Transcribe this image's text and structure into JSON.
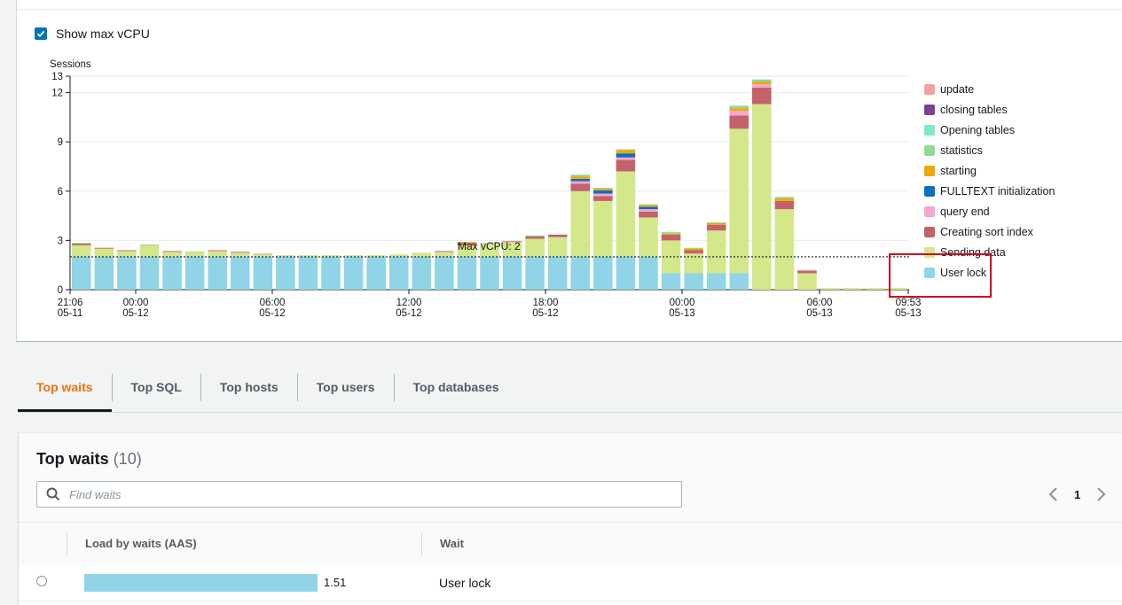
{
  "chart_controls": {
    "show_max_vcpu_label": "Show max vCPU",
    "show_max_vcpu_checked": true
  },
  "chart_data": {
    "type": "bar",
    "stacked": true,
    "ylabel": "Sessions",
    "ylim": [
      0,
      13
    ],
    "yticks": [
      0,
      3,
      6,
      9,
      12,
      13
    ],
    "xticks": [
      {
        "time": "21:06",
        "date": "05-11"
      },
      {
        "time": "00:00",
        "date": "05-12"
      },
      {
        "time": "06:00",
        "date": "05-12"
      },
      {
        "time": "12:00",
        "date": "05-12"
      },
      {
        "time": "18:00",
        "date": "05-12"
      },
      {
        "time": "00:00",
        "date": "05-13"
      },
      {
        "time": "06:00",
        "date": "05-13"
      },
      {
        "time": "09:53",
        "date": "05-13"
      }
    ],
    "max_vcpu_line": {
      "value": 2,
      "label": "Max vCPU: 2"
    },
    "series_colors": {
      "update": "#f4a0a0",
      "closing tables": "#7d3f98",
      "Opening tables": "#7ee8c8",
      "statistics": "#8fdc8f",
      "starting": "#f0a800",
      "FULLTEXT initialization": "#0c6fbf",
      "query end": "#f7a6d0",
      "Creating sort index": "#c2626b",
      "Sending data": "#d4e78a",
      "User lock": "#8fd5e7"
    },
    "bars": [
      {
        "User lock": 2,
        "Sending data": 0.7,
        "Creating sort index": 0.1,
        "statistics": 0.05
      },
      {
        "User lock": 2,
        "Sending data": 0.5,
        "Creating sort index": 0.05
      },
      {
        "User lock": 2,
        "Sending data": 0.35,
        "Creating sort index": 0.05
      },
      {
        "User lock": 2,
        "Sending data": 0.7,
        "statistics": 0.05
      },
      {
        "User lock": 2,
        "Sending data": 0.3,
        "Creating sort index": 0.05
      },
      {
        "User lock": 2,
        "Sending data": 0.3,
        "statistics": 0.03
      },
      {
        "User lock": 2,
        "Sending data": 0.35,
        "Creating sort index": 0.05
      },
      {
        "User lock": 2,
        "Sending data": 0.25,
        "Creating sort index": 0.05
      },
      {
        "User lock": 2,
        "Sending data": 0.15,
        "Creating sort index": 0.03
      },
      {
        "User lock": 2,
        "Sending data": 0.1
      },
      {
        "User lock": 2,
        "Sending data": 0.1
      },
      {
        "User lock": 2,
        "Sending data": 0.1
      },
      {
        "User lock": 2,
        "Sending data": 0.1
      },
      {
        "User lock": 2,
        "Sending data": 0.1
      },
      {
        "User lock": 2,
        "Sending data": 0.15
      },
      {
        "User lock": 2,
        "Sending data": 0.25
      },
      {
        "User lock": 2,
        "Sending data": 0.3,
        "Creating sort index": 0.05
      },
      {
        "User lock": 2,
        "Sending data": 0.7,
        "Creating sort index": 0.15,
        "starting": 0.05
      },
      {
        "User lock": 2,
        "Sending data": 0.8,
        "statistics": 0.05
      },
      {
        "User lock": 2,
        "Sending data": 0.9,
        "Creating sort index": 0.05
      },
      {
        "User lock": 2,
        "Sending data": 1.1,
        "Creating sort index": 0.15,
        "statistics": 0.05
      },
      {
        "User lock": 2,
        "Sending data": 1.2,
        "Creating sort index": 0.15
      },
      {
        "User lock": 2,
        "Sending data": 4.0,
        "Creating sort index": 0.45,
        "query end": 0.15,
        "FULLTEXT initialization": 0.15,
        "starting": 0.15,
        "statistics": 0.1
      },
      {
        "User lock": 2,
        "Sending data": 3.4,
        "Creating sort index": 0.3,
        "query end": 0.15,
        "FULLTEXT initialization": 0.2,
        "starting": 0.1,
        "statistics": 0.05
      },
      {
        "User lock": 2,
        "Sending data": 5.2,
        "Creating sort index": 0.7,
        "query end": 0.15,
        "FULLTEXT initialization": 0.25,
        "starting": 0.2,
        "statistics": 0.05
      },
      {
        "User lock": 2,
        "Sending data": 2.4,
        "Creating sort index": 0.35,
        "query end": 0.15,
        "FULLTEXT initialization": 0.15,
        "starting": 0.1,
        "statistics": 0.05
      },
      {
        "User lock": 1.0,
        "Sending data": 2.0,
        "Creating sort index": 0.35,
        "statistics": 0.1,
        "starting": 0.05
      },
      {
        "User lock": 1.0,
        "Sending data": 1.2,
        "Creating sort index": 0.2,
        "starting": 0.1,
        "statistics": 0.05
      },
      {
        "User lock": 1.0,
        "Sending data": 2.6,
        "Creating sort index": 0.35,
        "starting": 0.1,
        "statistics": 0.05
      },
      {
        "User lock": 1.0,
        "Sending data": 8.8,
        "Creating sort index": 0.8,
        "query end": 0.3,
        "starting": 0.15,
        "statistics": 0.15
      },
      {
        "Sending data": 11.3,
        "Creating sort index": 1.0,
        "query end": 0.2,
        "starting": 0.15,
        "statistics": 0.15
      },
      {
        "Sending data": 4.9,
        "Creating sort index": 0.5,
        "starting": 0.15,
        "statistics": 0.1
      },
      {
        "Sending data": 1.0,
        "Creating sort index": 0.15,
        "update": 0.05
      },
      {
        "Sending data": 0.1
      },
      {
        "Sending data": 0.1
      },
      {
        "Sending data": 0.1
      },
      {
        "Sending data": 0.1
      }
    ],
    "legend": [
      {
        "name": "update",
        "color": "#f4a0a0"
      },
      {
        "name": "closing tables",
        "color": "#7d3f98"
      },
      {
        "name": "Opening tables",
        "color": "#7ee8c8"
      },
      {
        "name": "statistics",
        "color": "#8fdc8f"
      },
      {
        "name": "starting",
        "color": "#f0a800"
      },
      {
        "name": "FULLTEXT initialization",
        "color": "#0c6fbf"
      },
      {
        "name": "query end",
        "color": "#f7a6d0"
      },
      {
        "name": "Creating sort index",
        "color": "#c2626b"
      },
      {
        "name": "Sending data",
        "color": "#d4e78a"
      },
      {
        "name": "User lock",
        "color": "#8fd5e7"
      }
    ]
  },
  "tabs": [
    {
      "label": "Top waits",
      "active": true
    },
    {
      "label": "Top SQL",
      "active": false
    },
    {
      "label": "Top hosts",
      "active": false
    },
    {
      "label": "Top users",
      "active": false
    },
    {
      "label": "Top databases",
      "active": false
    }
  ],
  "table": {
    "title": "Top waits",
    "count": "(10)",
    "search_placeholder": "Find waits",
    "page": "1",
    "columns": [
      "Load by waits (AAS)",
      "Wait"
    ],
    "rows": [
      {
        "load": 1.51,
        "load_label": "1.51",
        "wait": "User lock"
      }
    ]
  },
  "icons": [
    "checkbox-check-icon",
    "search-icon",
    "chevron-left-icon",
    "chevron-right-icon"
  ],
  "colors": {
    "accent": "#ec7211",
    "checkbox": "#0073bb",
    "highlight": "#d0021b"
  }
}
